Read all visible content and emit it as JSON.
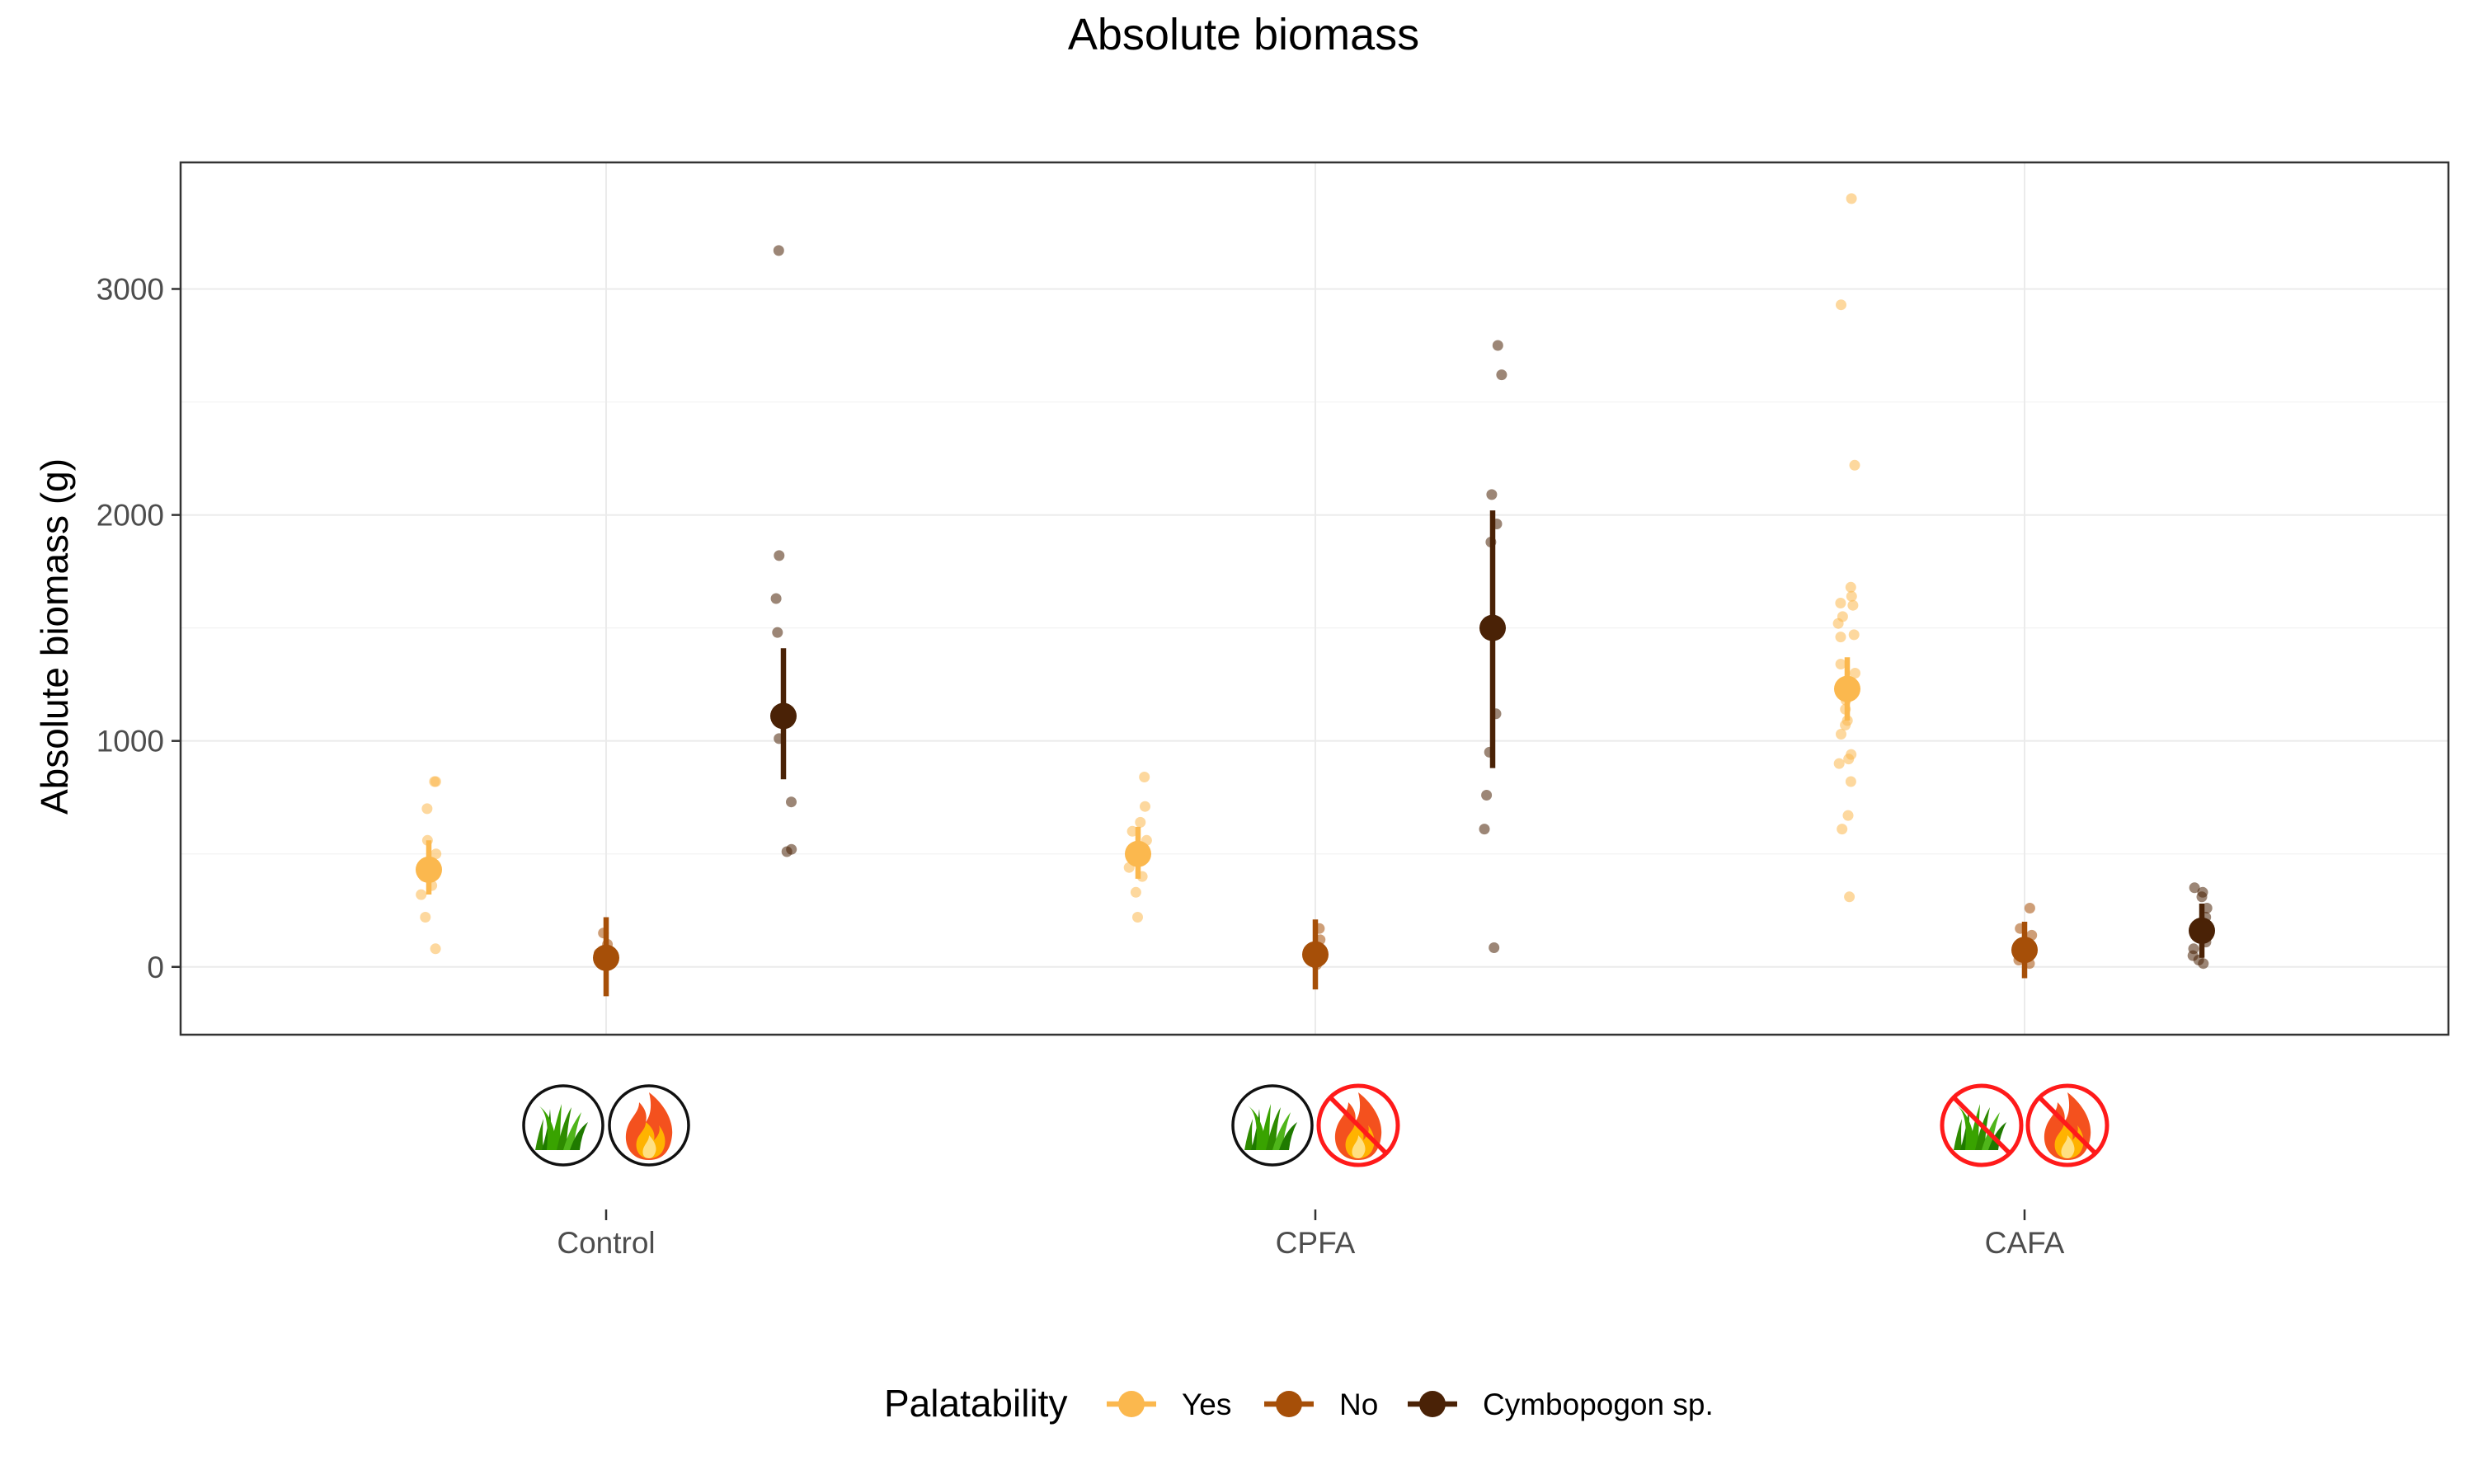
{
  "chart_data": {
    "type": "scatter",
    "title": "Absolute biomass",
    "xlabel": "",
    "ylabel": "Absolute biomass (g)",
    "ylim": [
      -300,
      3560
    ],
    "yticks": [
      0,
      1000,
      2000,
      3000
    ],
    "categories": [
      "Control",
      "CPFA",
      "CAFA"
    ],
    "grid": true,
    "legend": {
      "title": "Palatability",
      "position": "bottom",
      "entries": [
        "Yes",
        "No",
        "Cymbopogon sp."
      ]
    },
    "category_icons": [
      {
        "category": "Control",
        "icons": [
          {
            "name": "grass-icon",
            "crossed": false
          },
          {
            "name": "fire-icon",
            "crossed": false
          }
        ]
      },
      {
        "category": "CPFA",
        "icons": [
          {
            "name": "grass-icon",
            "crossed": false
          },
          {
            "name": "fire-icon",
            "crossed": true
          }
        ]
      },
      {
        "category": "CAFA",
        "icons": [
          {
            "name": "grass-icon",
            "crossed": true
          },
          {
            "name": "fire-icon",
            "crossed": true
          }
        ]
      }
    ],
    "series": [
      {
        "name": "Yes",
        "color": "#FBB84E",
        "groups": [
          {
            "category": "Control",
            "mean": 430,
            "lower": 320,
            "upper": 560,
            "points": [
              820,
              820,
              700,
              560,
              500,
              450,
              400,
              360,
              320,
              220,
              80
            ]
          },
          {
            "category": "CPFA",
            "mean": 500,
            "lower": 390,
            "upper": 620,
            "points": [
              840,
              710,
              640,
              600,
              560,
              520,
              480,
              440,
              400,
              330,
              220
            ]
          },
          {
            "category": "CAFA",
            "mean": 1230,
            "lower": 1090,
            "upper": 1370,
            "points": [
              3400,
              2930,
              2220,
              1680,
              1640,
              1610,
              1600,
              1550,
              1520,
              1470,
              1460,
              1340,
              1300,
              1260,
              1220,
              1180,
              1140,
              1090,
              1070,
              1030,
              940,
              920,
              900,
              820,
              670,
              610,
              310
            ]
          }
        ]
      },
      {
        "name": "No",
        "color": "#A64F08",
        "groups": [
          {
            "category": "Control",
            "mean": 40,
            "lower": -130,
            "upper": 220,
            "points": [
              150,
              100,
              60,
              30,
              10
            ]
          },
          {
            "category": "CPFA",
            "mean": 55,
            "lower": -100,
            "upper": 210,
            "points": [
              170,
              120,
              80,
              40,
              10
            ]
          },
          {
            "category": "CAFA",
            "mean": 75,
            "lower": -50,
            "upper": 200,
            "points": [
              260,
              170,
              140,
              90,
              60,
              30,
              15
            ]
          }
        ]
      },
      {
        "name": "Cymbopogon sp.",
        "color": "#4A2206",
        "groups": [
          {
            "category": "Control",
            "mean": 1110,
            "lower": 830,
            "upper": 1410,
            "points": [
              3170,
              1820,
              1630,
              1480,
              1010,
              730,
              520,
              510
            ]
          },
          {
            "category": "CPFA",
            "mean": 1500,
            "lower": 880,
            "upper": 2020,
            "points": [
              2750,
              2620,
              2090,
              1960,
              1880,
              1120,
              950,
              760,
              610,
              85
            ]
          },
          {
            "category": "CAFA",
            "mean": 160,
            "lower": 40,
            "upper": 280,
            "points": [
              350,
              330,
              310,
              260,
              220,
              170,
              140,
              110,
              80,
              50,
              30,
              15
            ]
          }
        ]
      }
    ]
  }
}
